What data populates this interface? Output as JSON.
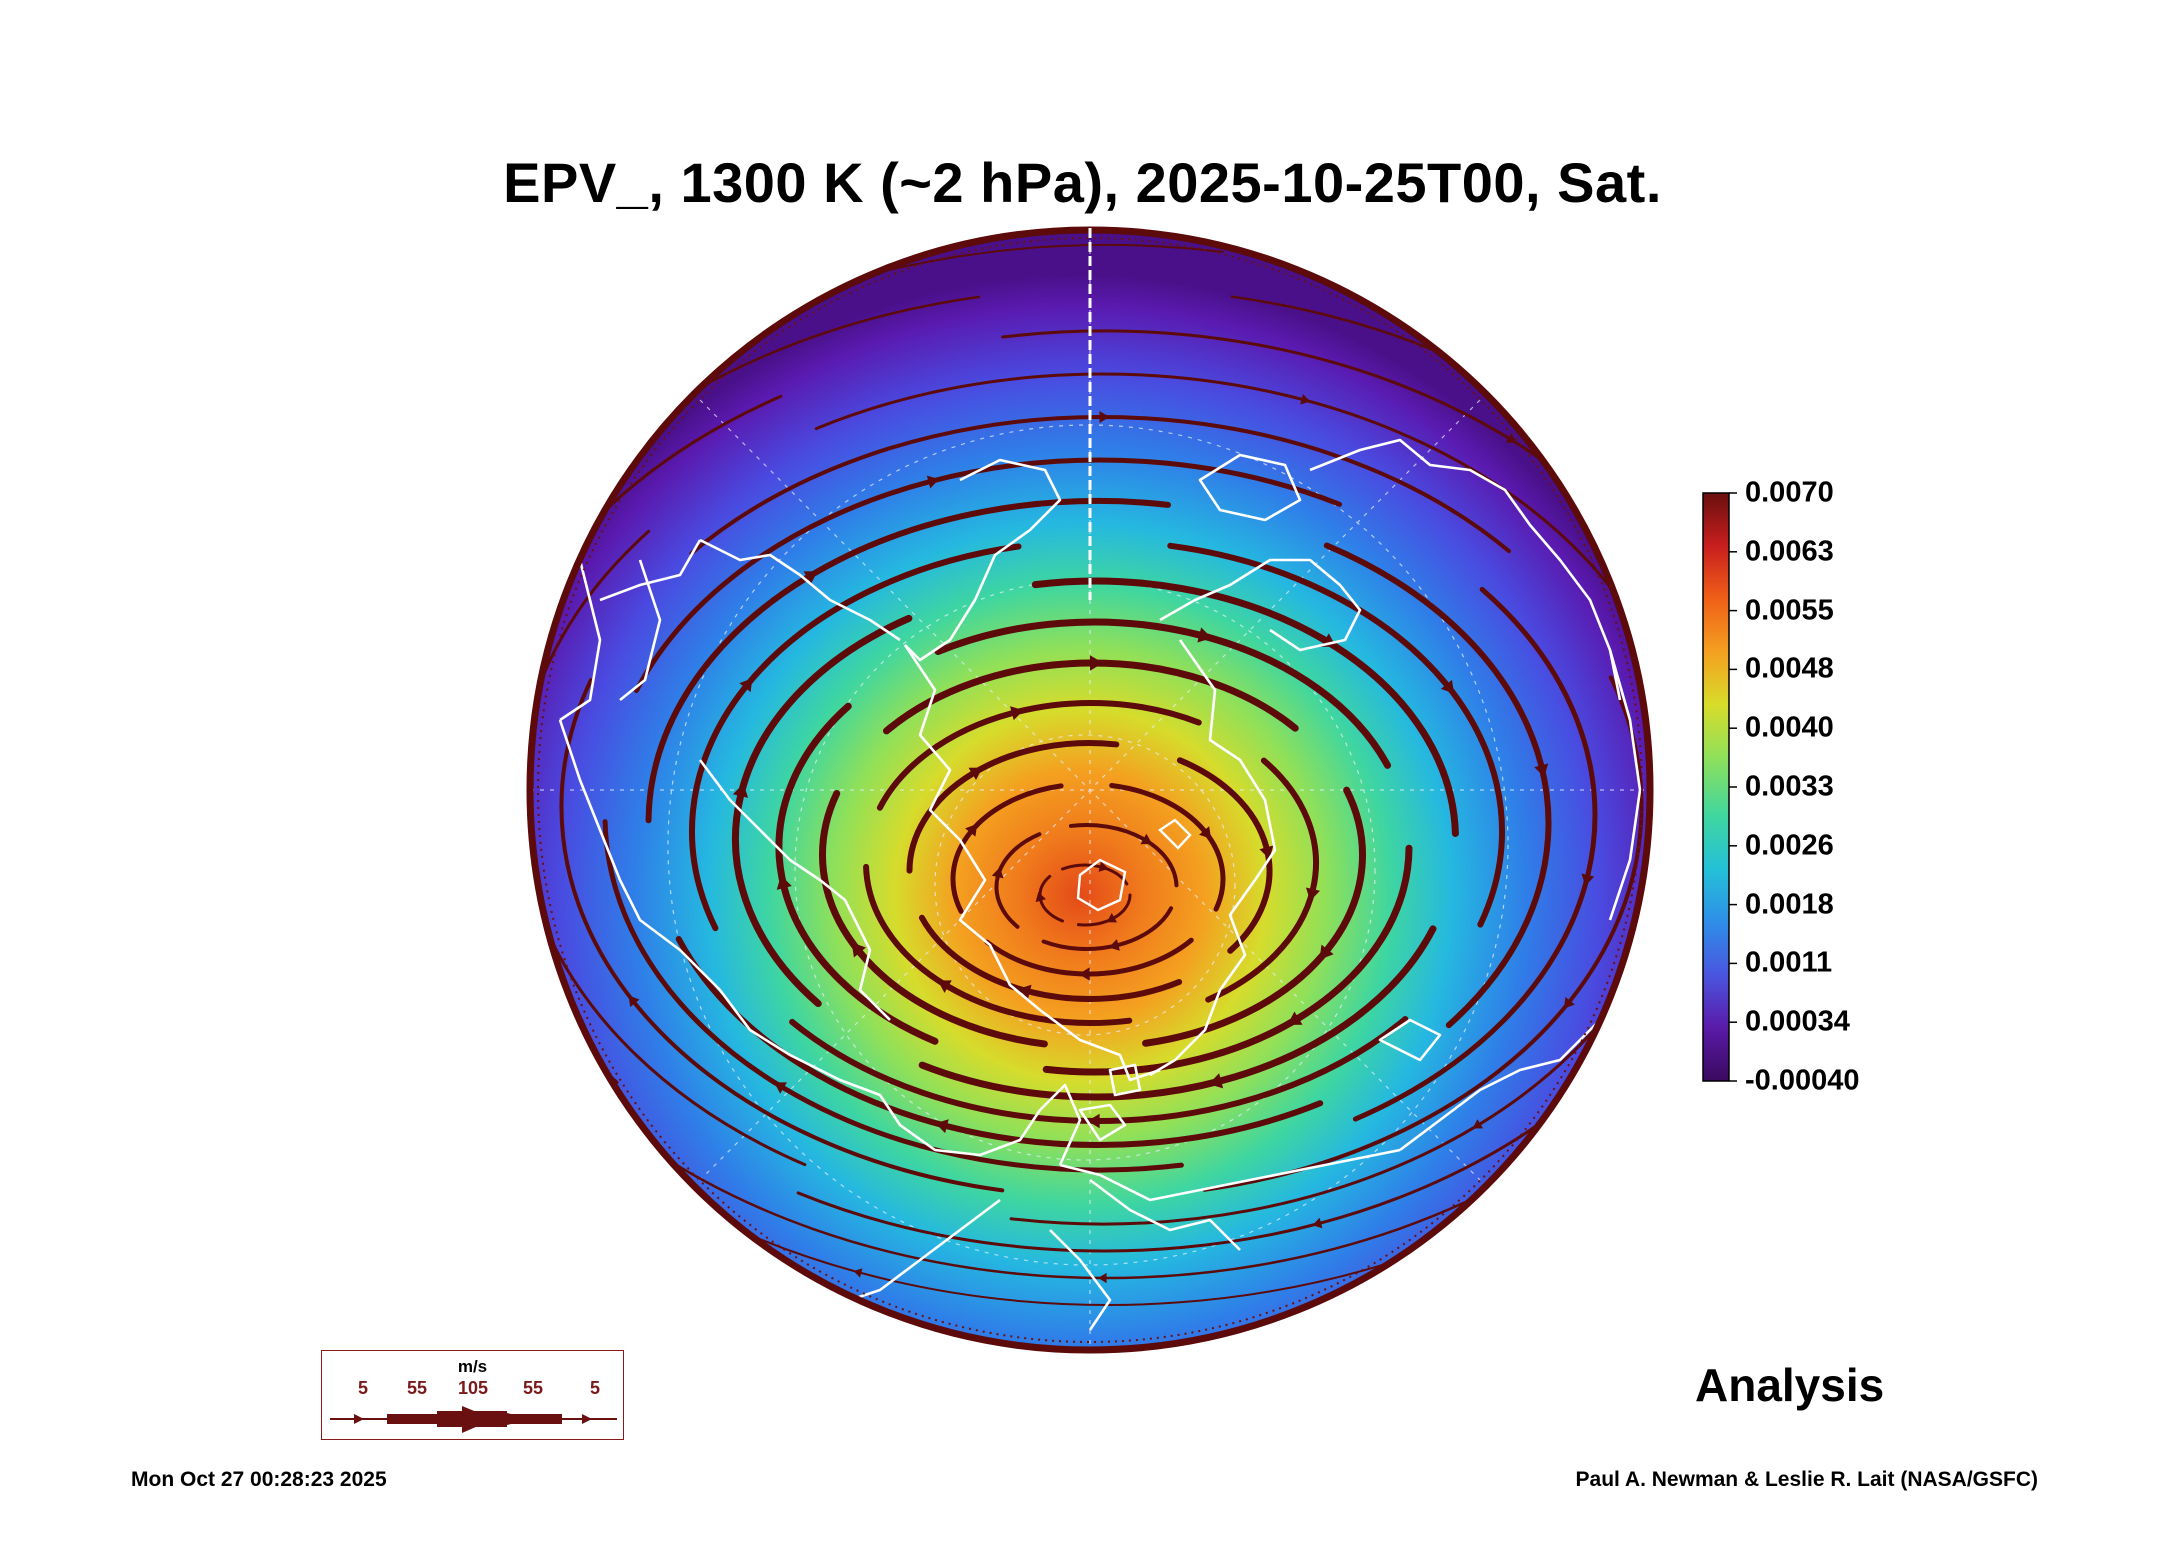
{
  "title": "EPV_, 1300 K (~2 hPa), 2025-10-25T00, Sat.",
  "label_analysis": "Analysis",
  "timestamp": "Mon Oct 27 00:28:23 2025",
  "credit": "Paul A. Newman & Leslie R. Lait (NASA/GSFC)",
  "colorbar": {
    "labels": [
      "0.0070",
      "0.0063",
      "0.0055",
      "0.0048",
      "0.0040",
      "0.0033",
      "0.0026",
      "0.0018",
      "0.0011",
      "0.00034",
      "-0.00040"
    ],
    "min": -0.0004,
    "max": 0.007,
    "colors": [
      "#3a0a5e",
      "#5a1aa8",
      "#4a55e0",
      "#2f8ee8",
      "#24c0d8",
      "#3fd6a0",
      "#8fe05a",
      "#d8dc2a",
      "#f4a020",
      "#f06018",
      "#c81e1e",
      "#6a0f0f"
    ]
  },
  "wind_legend": {
    "unit": "m/s",
    "values": [
      "5",
      "55",
      "105",
      "55",
      "5"
    ],
    "color": "#6a1010"
  },
  "map": {
    "flow_color": "#5c0a0a",
    "coastline_color": "#ffffff",
    "vortex_center_color": "#e8621a"
  }
}
